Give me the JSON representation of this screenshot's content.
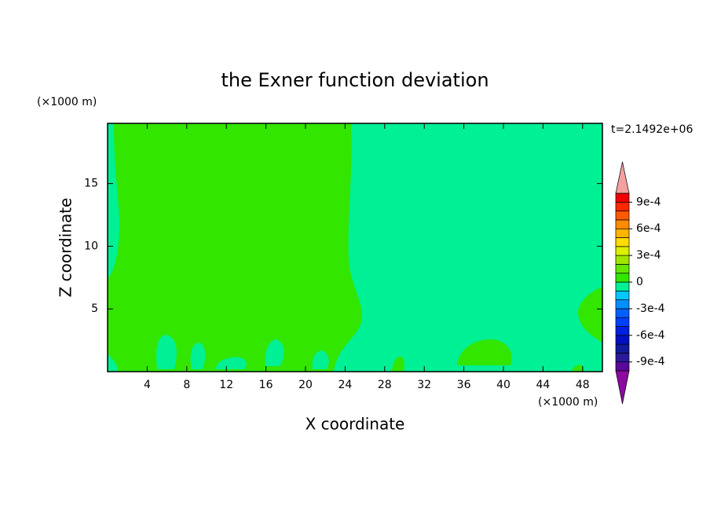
{
  "chart_data": {
    "type": "contour",
    "title": "the Exner function deviation",
    "x_label": "X coordinate",
    "y_label": "Z coordinate",
    "x_unit": "(×1000 m)",
    "y_unit": "(×1000 m)",
    "time_label": "t=2.1492e+06",
    "xlim": [
      0,
      50
    ],
    "ylim": [
      0,
      19.8
    ],
    "xticks": [
      4,
      8,
      12,
      16,
      20,
      24,
      28,
      32,
      36,
      40,
      44,
      48
    ],
    "yticks": [
      5,
      10,
      15
    ],
    "colorbar": {
      "levels": [
        -0.001,
        -0.0009,
        -0.0008,
        -0.0007,
        -0.0006,
        -0.0005,
        -0.0004,
        -0.0003,
        -0.0002,
        -0.0001,
        0,
        0.0001,
        0.0002,
        0.0003,
        0.0004,
        0.0005,
        0.0006,
        0.0007,
        0.0008,
        0.0009,
        0.001
      ],
      "colors": [
        "#5a0a9a",
        "#2a1a9a",
        "#101a9a",
        "#0010c0",
        "#0020e0",
        "#0040ff",
        "#0060ff",
        "#0090ff",
        "#00c8ff",
        "#00f096",
        "#32e600",
        "#64e600",
        "#a0e600",
        "#dcf000",
        "#ffdc00",
        "#ffb400",
        "#ff8c00",
        "#ff5a00",
        "#ff2800",
        "#f00000"
      ],
      "over_color": "#f5a0a0",
      "under_color": "#8c0aa0",
      "ticks": [
        {
          "value": 0.0009,
          "label": "9e-4"
        },
        {
          "value": 0.0006,
          "label": "6e-4"
        },
        {
          "value": 0.0003,
          "label": "3e-4"
        },
        0,
        {
          "value": -0.0003,
          "label": "-3e-4"
        },
        {
          "value": -0.0006,
          "label": "-6e-4"
        },
        {
          "value": -0.0009,
          "label": "-9e-4"
        }
      ]
    }
  }
}
